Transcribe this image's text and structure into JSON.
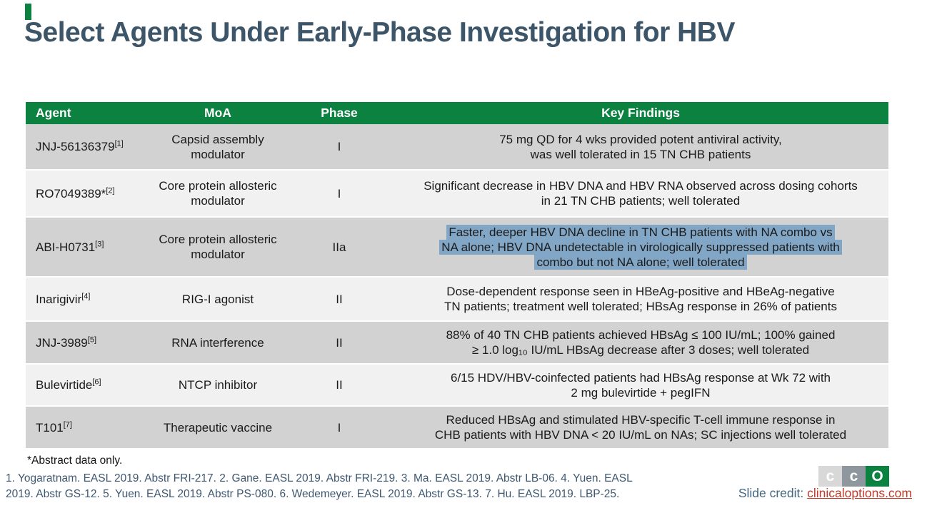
{
  "slide": {
    "title": "Select Agents Under Early-Phase Investigation for HBV",
    "footnote": "*Abstract data only.",
    "references": [
      "1. Yogaratnam. EASL 2019. Abstr FRI-217. 2. Gane. EASL 2019. Abstr FRI-219. 3. Ma. EASL 2019. Abstr LB-06. 4. Yuen. EASL",
      "2019. Abstr GS-12. 5. Yuen. EASL 2019. Abstr PS-080. 6. Wedemeyer. EASL 2019. Abstr GS-13. 7. Hu. EASL 2019. LBP-25."
    ],
    "credit_label": "Slide credit: ",
    "credit_link": "clinicaloptions.com"
  },
  "logo": {
    "letter1": "c",
    "letter2": "c",
    "letter3": "O"
  },
  "colors": {
    "header_green": "#0B8240",
    "highlight_blue": "#82A7C6",
    "row_dark": "#D2D2D2",
    "row_light": "#F1F1F1",
    "title_text": "#3D5568",
    "link_red": "#C23A28"
  },
  "table": {
    "headers": [
      "Agent",
      "MoA",
      "Phase",
      "Key Findings"
    ],
    "rows": [
      {
        "agent": "JNJ-56136379",
        "ref": "[1]",
        "moa": "Capsid assembly modulator",
        "phase": "I",
        "highlighted": false,
        "lines": [
          "75 mg QD for 4 wks provided potent antiviral activity,",
          "was well tolerated in 15 TN CHB patients"
        ]
      },
      {
        "agent": "RO7049389*",
        "ref": "[2]",
        "moa": "Core protein allosteric modulator",
        "phase": "I",
        "highlighted": false,
        "lines": [
          "Significant decrease in HBV DNA and HBV RNA observed across dosing cohorts",
          "in 21 TN CHB patients; well tolerated"
        ]
      },
      {
        "agent": "ABI-H0731",
        "ref": "[3]",
        "moa": "Core protein allosteric modulator",
        "phase": "IIa",
        "highlighted": true,
        "lines": [
          "Faster, deeper HBV DNA decline in TN CHB patients with NA combo vs",
          "NA alone; HBV DNA undetectable in virologically suppressed patients with",
          "combo but not NA alone; well tolerated"
        ]
      },
      {
        "agent": "Inarigivir",
        "ref": "[4]",
        "moa": "RIG-I agonist",
        "phase": "II",
        "highlighted": false,
        "lines": [
          "Dose-dependent response seen in HBeAg-positive and HBeAg-negative",
          "TN patients; treatment well tolerated; HBsAg response in 26% of patients"
        ]
      },
      {
        "agent": "JNJ-3989",
        "ref": "[5]",
        "moa": "RNA interference",
        "phase": "II",
        "highlighted": false,
        "lines": [
          "88% of 40 TN CHB patients achieved HBsAg ≤ 100 IU/mL; 100% gained",
          "≥ 1.0 log₁₀ IU/mL HBsAg decrease after 3 doses; well tolerated"
        ]
      },
      {
        "agent": "Bulevirtide",
        "ref": "[6]",
        "moa": "NTCP inhibitor",
        "phase": "II",
        "highlighted": false,
        "lines": [
          "6/15 HDV/HBV-coinfected patients had HBsAg response at Wk 72 with",
          "2 mg bulevirtide + pegIFN"
        ]
      },
      {
        "agent": "T101",
        "ref": "[7]",
        "moa": "Therapeutic vaccine",
        "phase": "I",
        "highlighted": false,
        "lines": [
          "Reduced HBsAg and stimulated HBV-specific T-cell immune response in",
          "CHB patients with HBV DNA < 20 IU/mL on NAs; SC injections well tolerated"
        ]
      }
    ]
  }
}
